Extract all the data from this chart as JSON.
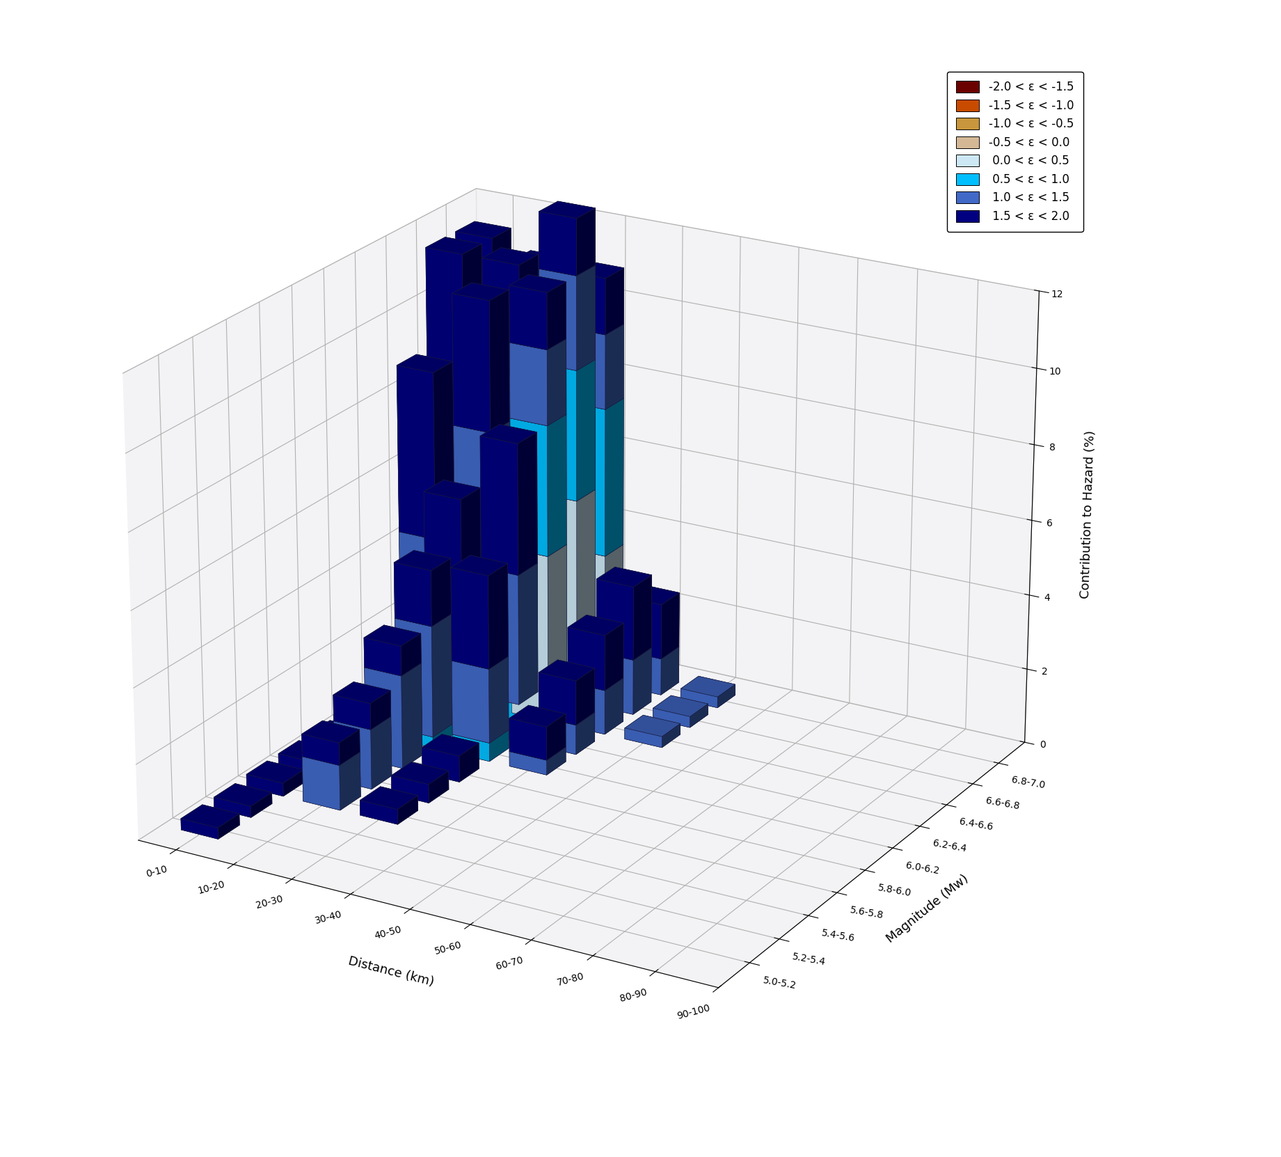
{
  "magnitude_labels": [
    "5.0-5.2",
    "5.2-5.4",
    "5.4-5.6",
    "5.6-5.8",
    "5.8-6.0",
    "6.0-6.2",
    "6.2-6.4",
    "6.4-6.6",
    "6.6-6.8",
    "6.8-7.0"
  ],
  "distance_labels": [
    "0-10",
    "10-20",
    "20-30",
    "30-40",
    "40-50",
    "50-60",
    "60-70",
    "70-80",
    "80-90",
    "90-100"
  ],
  "epsilon_labels": [
    "-2.0 < ε < -1.5",
    "-1.5 < ε < -1.0",
    "-1.0 < ε < -0.5",
    "-0.5 < ε < 0.0",
    " 0.0 < ε < 0.5",
    " 0.5 < ε < 1.0",
    " 1.0 < ε < 1.5",
    " 1.5 < ε < 2.0"
  ],
  "epsilon_colors": [
    "#6b0000",
    "#c84b00",
    "#c8963c",
    "#d4b896",
    "#cce8f4",
    "#00bfff",
    "#4169c8",
    "#000080"
  ],
  "bar_data_values": [
    [
      [
        0,
        0,
        0,
        0,
        0,
        0,
        0,
        0.3
      ],
      [
        0,
        0,
        0,
        0,
        0,
        0,
        0,
        0
      ],
      [
        0,
        0,
        0,
        0,
        0,
        0,
        0,
        0
      ],
      [
        0,
        0,
        0,
        0,
        0,
        0,
        0,
        0
      ],
      [
        0,
        0,
        0,
        0,
        0,
        0,
        0,
        0
      ],
      [
        0,
        0,
        0,
        0,
        0,
        0,
        0,
        0
      ],
      [
        0,
        0,
        0,
        0,
        0,
        0,
        0,
        0
      ],
      [
        0,
        0,
        0,
        0,
        0,
        0,
        0,
        0
      ],
      [
        0,
        0,
        0,
        0,
        0,
        0,
        0,
        0
      ],
      [
        0,
        0,
        0,
        0,
        0,
        0,
        0,
        0
      ]
    ],
    [
      [
        0,
        0,
        0,
        0,
        0,
        0,
        0,
        0.3
      ],
      [
        0,
        0,
        0,
        0,
        0,
        0,
        0,
        0
      ],
      [
        0,
        0,
        0,
        0,
        0,
        0,
        0,
        0
      ],
      [
        0,
        0,
        0,
        0,
        0,
        0,
        0,
        0
      ],
      [
        0,
        0,
        0,
        0,
        0,
        0,
        0,
        0
      ],
      [
        0,
        0,
        0,
        0,
        0,
        0,
        0,
        0
      ],
      [
        0,
        0,
        0,
        0,
        0,
        0,
        0,
        0
      ],
      [
        0,
        0,
        0,
        0,
        0,
        0,
        0,
        0
      ],
      [
        0,
        0,
        0,
        0,
        0,
        0,
        0,
        0
      ],
      [
        0,
        0,
        0,
        0,
        0,
        0,
        0,
        0
      ]
    ],
    [
      [
        0,
        0,
        0,
        0,
        0,
        0,
        0,
        0.35
      ],
      [
        0,
        0,
        0,
        0,
        0,
        0,
        1.2,
        0.6
      ],
      [
        0,
        0,
        0,
        0,
        0,
        0,
        0,
        0.4
      ],
      [
        0,
        0,
        0,
        0,
        0,
        0,
        0,
        0
      ],
      [
        0,
        0,
        0,
        0,
        0,
        0,
        0,
        0
      ],
      [
        0,
        0,
        0,
        0,
        0,
        0,
        0,
        0
      ],
      [
        0,
        0,
        0,
        0,
        0,
        0,
        0,
        0
      ],
      [
        0,
        0,
        0,
        0,
        0,
        0,
        0,
        0
      ],
      [
        0,
        0,
        0,
        0,
        0,
        0,
        0,
        0
      ],
      [
        0,
        0,
        0,
        0,
        0,
        0,
        0,
        0
      ]
    ],
    [
      [
        0,
        0,
        0,
        0,
        0,
        0,
        0,
        0.35
      ],
      [
        0,
        0,
        0,
        0,
        0,
        0,
        1.6,
        0.7
      ],
      [
        0,
        0,
        0,
        0,
        0,
        0,
        0,
        0.5
      ],
      [
        0,
        0,
        0,
        0,
        0,
        0,
        0,
        0
      ],
      [
        0,
        0,
        0,
        0,
        0,
        0,
        0,
        0
      ],
      [
        0,
        0,
        0,
        0,
        0,
        0,
        0,
        0
      ],
      [
        0,
        0,
        0,
        0,
        0,
        0,
        0,
        0
      ],
      [
        0,
        0,
        0,
        0,
        0,
        0,
        0,
        0
      ],
      [
        0,
        0,
        0,
        0,
        0,
        0,
        0,
        0
      ],
      [
        0,
        0,
        0,
        0,
        0,
        0,
        0,
        0
      ]
    ],
    [
      [
        0,
        0,
        0,
        0,
        0,
        0,
        0,
        0.35
      ],
      [
        0,
        0,
        0,
        0,
        0,
        0,
        2.5,
        0.8
      ],
      [
        0,
        0,
        0,
        0,
        0,
        0,
        0,
        0.7
      ],
      [
        0,
        0,
        0,
        0,
        0,
        0,
        0,
        0
      ],
      [
        0,
        0,
        0,
        0,
        0,
        0,
        0,
        0
      ],
      [
        0,
        0,
        0,
        0,
        0,
        0,
        0,
        0
      ],
      [
        0,
        0,
        0,
        0,
        0,
        0,
        0,
        0
      ],
      [
        0,
        0,
        0,
        0,
        0,
        0,
        0,
        0
      ],
      [
        0,
        0,
        0,
        0,
        0,
        0,
        0,
        0
      ],
      [
        0,
        0,
        0,
        0,
        0,
        0,
        0,
        0
      ]
    ],
    [
      [
        0,
        0,
        0,
        0,
        0,
        0,
        0,
        0.35
      ],
      [
        0,
        0,
        0,
        0,
        0,
        0.3,
        3.0,
        1.5
      ],
      [
        0,
        0,
        0,
        0,
        0,
        0.5,
        2.0,
        2.5
      ],
      [
        0,
        0,
        0,
        0,
        0,
        0,
        0.4,
        0.9
      ],
      [
        0,
        0,
        0,
        0,
        0,
        0,
        0,
        0
      ],
      [
        0,
        0,
        0,
        0,
        0,
        0,
        0,
        0
      ],
      [
        0,
        0,
        0,
        0,
        0,
        0,
        0,
        0
      ],
      [
        0,
        0,
        0,
        0,
        0,
        0,
        0,
        0
      ],
      [
        0,
        0,
        0,
        0,
        0,
        0,
        0,
        0
      ],
      [
        0,
        0,
        0,
        0,
        0,
        0,
        0,
        0
      ]
    ],
    [
      [
        0,
        0,
        0,
        0,
        0,
        0,
        0,
        0.35
      ],
      [
        0,
        0,
        0,
        0,
        0,
        0.5,
        3.5,
        2.2
      ],
      [
        0,
        0,
        0,
        0,
        0,
        1.0,
        3.5,
        3.5
      ],
      [
        0,
        0,
        0,
        0,
        0,
        0,
        0.8,
        1.2
      ],
      [
        0,
        0,
        0,
        0,
        0,
        0,
        0,
        0
      ],
      [
        0,
        0,
        0,
        0,
        0,
        0,
        0,
        0
      ],
      [
        0,
        0,
        0,
        0,
        0,
        0,
        0,
        0
      ],
      [
        0,
        0,
        0,
        0,
        0,
        0,
        0,
        0
      ],
      [
        0,
        0,
        0,
        0,
        0,
        0,
        0,
        0
      ],
      [
        0,
        0,
        0,
        0,
        0,
        0,
        0,
        0
      ]
    ],
    [
      [
        0,
        0,
        0,
        0,
        0,
        0.8,
        3.5,
        4.5
      ],
      [
        0,
        0,
        0,
        0,
        0,
        2.5,
        5.0,
        3.5
      ],
      [
        0,
        0,
        0,
        0,
        4.5,
        3.5,
        2.0,
        1.5
      ],
      [
        0,
        0,
        0,
        0,
        0,
        0,
        1.2,
        1.5
      ],
      [
        0,
        0,
        0,
        0,
        0,
        0,
        0.3,
        0
      ],
      [
        0,
        0,
        0,
        0,
        0,
        0,
        0,
        0
      ],
      [
        0,
        0,
        0,
        0,
        0,
        0,
        0,
        0
      ],
      [
        0,
        0,
        0,
        0,
        0,
        0,
        0,
        0
      ],
      [
        0,
        0,
        0,
        0,
        0,
        0,
        0,
        0
      ],
      [
        0,
        0,
        0,
        0,
        0,
        0,
        0,
        0
      ]
    ],
    [
      [
        0,
        0,
        0,
        0,
        0,
        1.5,
        5.5,
        4.5
      ],
      [
        0,
        0,
        0,
        0,
        0,
        3.0,
        5.5,
        3.0
      ],
      [
        0,
        0,
        0,
        0,
        5.5,
        3.5,
        2.5,
        1.5
      ],
      [
        0,
        0,
        0,
        0,
        0,
        0,
        1.5,
        2.0
      ],
      [
        0,
        0,
        0,
        0,
        0,
        0,
        0.3,
        0
      ],
      [
        0,
        0,
        0,
        0,
        0,
        0,
        0,
        0
      ],
      [
        0,
        0,
        0,
        0,
        0,
        0,
        0,
        0
      ],
      [
        0,
        0,
        0,
        0,
        0,
        0,
        0,
        0
      ],
      [
        0,
        0,
        0,
        0,
        0,
        0,
        0,
        0
      ],
      [
        0,
        0,
        0,
        0,
        0,
        0,
        0,
        0
      ]
    ],
    [
      [
        0,
        0,
        0,
        0,
        0,
        1.0,
        5.0,
        5.5
      ],
      [
        0,
        0,
        0,
        0,
        0,
        2.5,
        5.0,
        3.5
      ],
      [
        0,
        0,
        0,
        0,
        3.5,
        4.0,
        2.0,
        1.5
      ],
      [
        0,
        0,
        0,
        0,
        0,
        0,
        1.0,
        1.5
      ],
      [
        0,
        0,
        0,
        0,
        0,
        0,
        0.3,
        0
      ],
      [
        0,
        0,
        0,
        0,
        0,
        0,
        0,
        0
      ],
      [
        0,
        0,
        0,
        0,
        0,
        0,
        0,
        0
      ],
      [
        0,
        0,
        0,
        0,
        0,
        0,
        0,
        0
      ],
      [
        0,
        0,
        0,
        0,
        0,
        0,
        0,
        0
      ],
      [
        0,
        0,
        0,
        0,
        0,
        0,
        0,
        0
      ]
    ]
  ],
  "zlabel": "Contribution to Hazard (%)",
  "ylabel": "Magnitude (Mw)",
  "xlabel": "Distance (km)",
  "zlim": [
    0,
    12
  ],
  "elev": 22,
  "azim": -60,
  "pane_color": "#e8e8ec",
  "figure_bg": "#ffffff",
  "bar_width": 0.65,
  "bar_depth": 0.65
}
